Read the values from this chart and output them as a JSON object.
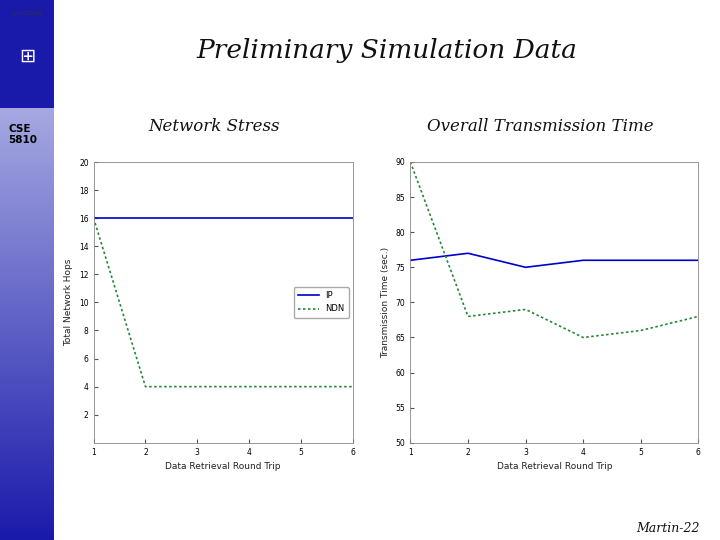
{
  "title": "Preliminary Simulation Data",
  "subtitle_left": "Network Stress",
  "subtitle_right": "Overall Transmission Time",
  "footer": "Martin-22",
  "cse_label": "CSE\n5810",
  "bg_color": "#ffffff",
  "sidebar_top_color": "#1a1aaa",
  "sidebar_bottom_color": "#c8ccee",
  "logo_bg_color": "#1a1aaa",
  "header_bar_color": "#cc2222",
  "chart1": {
    "x": [
      1,
      2,
      3,
      4,
      5,
      6
    ],
    "ip_y": [
      16,
      16,
      16,
      16,
      16,
      16
    ],
    "ndn_y": [
      16,
      4,
      4,
      4,
      4,
      4
    ],
    "xlabel": "Data Retrieval Round Trip",
    "ylabel": "Total Network Hops",
    "ylim": [
      0,
      20
    ],
    "yticks": [
      2,
      4,
      6,
      8,
      10,
      12,
      14,
      16,
      18,
      20
    ],
    "xlim": [
      1,
      6
    ],
    "xticks": [
      1,
      2,
      3,
      4,
      5,
      6
    ],
    "ip_color": "#0000cc",
    "ndn_color": "#228833"
  },
  "chart2": {
    "x": [
      1,
      2,
      3,
      4,
      5,
      6
    ],
    "ip_y": [
      76,
      77,
      75,
      76,
      76,
      76
    ],
    "ndn_y": [
      90,
      68,
      69,
      65,
      66,
      68
    ],
    "xlabel": "Data Retrieval Round Trip",
    "ylabel": "Transmission Time (sec.)",
    "ylim": [
      50,
      90
    ],
    "yticks": [
      50,
      55,
      60,
      65,
      70,
      75,
      80,
      85,
      90
    ],
    "xlim": [
      1,
      6
    ],
    "xticks": [
      1,
      2,
      3,
      4,
      5,
      6
    ],
    "ip_color": "#0000cc",
    "ndn_color": "#228833"
  }
}
